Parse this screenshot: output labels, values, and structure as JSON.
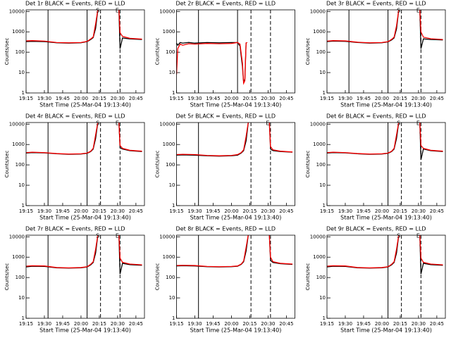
{
  "chart_data": [
    {
      "type": "line",
      "title": "Det 1r BLACK = Events, RED = LLD",
      "xlabel": "Start Time (25-Mar-04 19:13:40)",
      "ylabel": "Counts/sec",
      "ylog": true,
      "xlim": [
        "19:15",
        "20:52"
      ],
      "xticks": [
        "19:15",
        "19:30",
        "19:45",
        "20:00",
        "20:15",
        "20:30",
        "20:45"
      ],
      "ylim": [
        1,
        12000
      ],
      "yticks": [
        1,
        10,
        100,
        1000,
        10000
      ],
      "x": [
        "19:15",
        "19:20",
        "19:30",
        "19:40",
        "19:50",
        "20:00",
        "20:05",
        "20:08",
        "20:10",
        "20:12",
        "20:14",
        "20:31",
        "20:32",
        "20:34",
        "20:40",
        "20:50"
      ],
      "series": [
        {
          "color": "#000000",
          "values": [
            330,
            340,
            330,
            290,
            280,
            290,
            330,
            420,
            520,
            1500,
            15000,
            15000,
            150,
            500,
            450,
            420
          ]
        },
        {
          "color": "#ff0000",
          "values": [
            360,
            370,
            350,
            300,
            290,
            300,
            340,
            450,
            560,
            2500,
            15000,
            15000,
            900,
            600,
            480,
            440
          ]
        }
      ],
      "vlines": [
        {
          "x": "19:33",
          "style": "solid"
        },
        {
          "x": "20:05",
          "style": "solid"
        },
        {
          "x": "20:16",
          "style": "dashed",
          "label": "S"
        },
        {
          "x": "20:32",
          "style": "dashed",
          "label": "E"
        }
      ]
    },
    {
      "type": "line",
      "title": "Det 2r BLACK = Events, RED = LLD",
      "xlabel": "Start Time (25-Mar-04 19:13:40)",
      "ylabel": "Counts/sec",
      "ylog": true,
      "xlim": [
        "19:15",
        "20:52"
      ],
      "xticks": [
        "19:15",
        "19:30",
        "19:45",
        "20:00",
        "20:15",
        "20:30",
        "20:45"
      ],
      "ylim": [
        1,
        12000
      ],
      "yticks": [
        1,
        10,
        100,
        1000,
        10000
      ],
      "x": [
        "19:15",
        "19:16",
        "19:18",
        "19:20",
        "19:25",
        "19:30",
        "19:40",
        "19:50",
        "20:00",
        "20:05",
        "20:07",
        "20:09",
        "20:10",
        "20:11",
        "20:12",
        "20:13"
      ],
      "series": [
        {
          "color": "#000000",
          "values": [
            280,
            220,
            300,
            280,
            300,
            280,
            300,
            290,
            300,
            300,
            200,
            20,
            3,
            5,
            300,
            null
          ]
        },
        {
          "color": "#ff0000",
          "values": [
            8,
            150,
            250,
            220,
            260,
            250,
            270,
            260,
            270,
            300,
            250,
            30,
            3,
            4,
            280,
            300
          ]
        }
      ],
      "vlines": [
        {
          "x": "19:33",
          "style": "solid"
        },
        {
          "x": "20:05",
          "style": "solid"
        },
        {
          "x": "20:16",
          "style": "dashed"
        },
        {
          "x": "20:32",
          "style": "dashed"
        }
      ]
    },
    {
      "type": "line",
      "title": "Det 3r BLACK = Events, RED = LLD",
      "xlabel": "Start Time (25-Mar-04 19:13:40)",
      "ylabel": "Counts/sec",
      "ylog": true,
      "xlim": [
        "19:15",
        "20:52"
      ],
      "xticks": [
        "19:15",
        "19:30",
        "19:45",
        "20:00",
        "20:15",
        "20:30",
        "20:45"
      ],
      "ylim": [
        1,
        12000
      ],
      "yticks": [
        1,
        10,
        100,
        1000,
        10000
      ],
      "x": [
        "19:15",
        "19:20",
        "19:30",
        "19:40",
        "19:50",
        "20:00",
        "20:05",
        "20:08",
        "20:10",
        "20:12",
        "20:14",
        "20:31",
        "20:32",
        "20:34",
        "20:40",
        "20:50"
      ],
      "series": [
        {
          "color": "#000000",
          "values": [
            330,
            350,
            340,
            300,
            280,
            290,
            320,
            400,
            500,
            1400,
            15000,
            15000,
            150,
            450,
            420,
            400
          ]
        },
        {
          "color": "#ff0000",
          "values": [
            350,
            370,
            360,
            310,
            290,
            300,
            330,
            430,
            550,
            2000,
            15000,
            15000,
            1000,
            550,
            460,
            420
          ]
        }
      ],
      "vlines": [
        {
          "x": "19:33",
          "style": "solid"
        },
        {
          "x": "20:05",
          "style": "solid"
        },
        {
          "x": "20:16",
          "style": "dashed",
          "label": "S"
        },
        {
          "x": "20:32",
          "style": "dashed",
          "label": "E"
        }
      ]
    },
    {
      "type": "line",
      "title": "Det 4r BLACK = Events, RED = LLD",
      "xlabel": "Start Time (25-Mar-04 19:13:40)",
      "ylabel": "Counts/sec",
      "ylog": true,
      "xlim": [
        "19:15",
        "20:52"
      ],
      "xticks": [
        "19:15",
        "19:30",
        "19:45",
        "20:00",
        "20:15",
        "20:30",
        "20:45"
      ],
      "ylim": [
        1,
        12000
      ],
      "yticks": [
        1,
        10,
        100,
        1000,
        10000
      ],
      "x": [
        "19:15",
        "19:20",
        "19:30",
        "19:40",
        "19:50",
        "20:00",
        "20:05",
        "20:08",
        "20:10",
        "20:12",
        "20:14",
        "20:31",
        "20:32",
        "20:34",
        "20:40",
        "20:50"
      ],
      "series": [
        {
          "color": "#000000",
          "values": [
            380,
            400,
            390,
            350,
            330,
            340,
            370,
            450,
            600,
            2000,
            15000,
            15000,
            700,
            600,
            500,
            450
          ]
        },
        {
          "color": "#ff0000",
          "values": [
            400,
            420,
            400,
            360,
            340,
            350,
            380,
            470,
            650,
            3000,
            15000,
            15000,
            900,
            650,
            520,
            470
          ]
        }
      ],
      "vlines": [
        {
          "x": "19:33",
          "style": "solid"
        },
        {
          "x": "20:05",
          "style": "solid"
        },
        {
          "x": "20:16",
          "style": "dashed",
          "label": "S"
        },
        {
          "x": "20:32",
          "style": "dashed",
          "label": "E"
        }
      ]
    },
    {
      "type": "line",
      "title": "Det 5r BLACK = Events, RED = LLD",
      "xlabel": "Start Time (25-Mar-04 19:13:40)",
      "ylabel": "Counts/sec",
      "ylog": true,
      "xlim": [
        "19:15",
        "20:52"
      ],
      "xticks": [
        "19:15",
        "19:30",
        "19:45",
        "20:00",
        "20:15",
        "20:30",
        "20:45"
      ],
      "ylim": [
        1,
        12000
      ],
      "yticks": [
        1,
        10,
        100,
        1000,
        10000
      ],
      "x": [
        "19:15",
        "19:20",
        "19:30",
        "19:40",
        "19:50",
        "20:00",
        "20:05",
        "20:08",
        "20:10",
        "20:12",
        "20:14",
        "20:31",
        "20:32",
        "20:34",
        "20:40",
        "20:50"
      ],
      "series": [
        {
          "color": "#000000",
          "values": [
            300,
            310,
            300,
            280,
            270,
            280,
            300,
            380,
            500,
            1500,
            15000,
            15000,
            600,
            500,
            450,
            420
          ]
        },
        {
          "color": "#ff0000",
          "values": [
            320,
            330,
            320,
            290,
            280,
            290,
            320,
            400,
            550,
            2500,
            15000,
            15000,
            800,
            550,
            470,
            430
          ]
        }
      ],
      "vlines": [
        {
          "x": "19:33",
          "style": "solid"
        },
        {
          "x": "20:16",
          "style": "dashed"
        },
        {
          "x": "20:32",
          "style": "dashed",
          "label": "E"
        }
      ]
    },
    {
      "type": "line",
      "title": "Det 6r BLACK = Events, RED = LLD",
      "xlabel": "Start Time (25-Mar-04 19:13:40)",
      "ylabel": "Counts/sec",
      "ylog": true,
      "xlim": [
        "19:15",
        "20:52"
      ],
      "xticks": [
        "19:15",
        "19:30",
        "19:45",
        "20:00",
        "20:15",
        "20:30",
        "20:45"
      ],
      "ylim": [
        1,
        12000
      ],
      "yticks": [
        1,
        10,
        100,
        1000,
        10000
      ],
      "x": [
        "19:15",
        "19:20",
        "19:30",
        "19:40",
        "19:50",
        "20:00",
        "20:05",
        "20:08",
        "20:10",
        "20:12",
        "20:14",
        "20:31",
        "20:32",
        "20:34",
        "20:40",
        "20:50"
      ],
      "series": [
        {
          "color": "#000000",
          "values": [
            380,
            400,
            390,
            350,
            330,
            340,
            370,
            450,
            600,
            2000,
            15000,
            15000,
            180,
            600,
            500,
            450
          ]
        },
        {
          "color": "#ff0000",
          "values": [
            400,
            420,
            400,
            360,
            340,
            350,
            380,
            470,
            650,
            3000,
            15000,
            15000,
            900,
            650,
            520,
            470
          ]
        }
      ],
      "vlines": [
        {
          "x": "20:05",
          "style": "solid"
        },
        {
          "x": "20:16",
          "style": "dashed",
          "label": "S"
        },
        {
          "x": "20:32",
          "style": "dashed",
          "label": "E"
        }
      ]
    },
    {
      "type": "line",
      "title": "Det 7r BLACK = Events, RED = LLD",
      "xlabel": "Start Time (25-Mar-04 19:13:40)",
      "ylabel": "Counts/sec",
      "ylog": true,
      "xlim": [
        "19:15",
        "20:52"
      ],
      "xticks": [
        "19:15",
        "19:30",
        "19:45",
        "20:00",
        "20:15",
        "20:30",
        "20:45"
      ],
      "ylim": [
        1,
        12000
      ],
      "yticks": [
        1,
        10,
        100,
        1000,
        10000
      ],
      "x": [
        "19:15",
        "19:20",
        "19:30",
        "19:40",
        "19:50",
        "20:00",
        "20:05",
        "20:08",
        "20:10",
        "20:12",
        "20:14",
        "20:31",
        "20:32",
        "20:34",
        "20:40",
        "20:50"
      ],
      "series": [
        {
          "color": "#000000",
          "values": [
            330,
            360,
            350,
            300,
            290,
            300,
            330,
            420,
            550,
            1600,
            15000,
            15000,
            150,
            500,
            430,
            400
          ]
        },
        {
          "color": "#ff0000",
          "values": [
            360,
            380,
            370,
            310,
            300,
            310,
            340,
            450,
            600,
            2500,
            15000,
            15000,
            900,
            560,
            460,
            420
          ]
        }
      ],
      "vlines": [
        {
          "x": "19:33",
          "style": "solid"
        },
        {
          "x": "20:05",
          "style": "solid"
        },
        {
          "x": "20:16",
          "style": "dashed",
          "label": "S"
        },
        {
          "x": "20:32",
          "style": "dashed",
          "label": "E"
        }
      ]
    },
    {
      "type": "line",
      "title": "Det 8r BLACK = Events, RED = LLD",
      "xlabel": "Start Time (25-Mar-04 19:13:40)",
      "ylabel": "Counts/sec",
      "ylog": true,
      "xlim": [
        "19:15",
        "20:52"
      ],
      "xticks": [
        "19:15",
        "19:30",
        "19:45",
        "20:00",
        "20:15",
        "20:30",
        "20:45"
      ],
      "ylim": [
        1,
        12000
      ],
      "yticks": [
        1,
        10,
        100,
        1000,
        10000
      ],
      "x": [
        "19:15",
        "19:20",
        "19:30",
        "19:40",
        "19:50",
        "20:00",
        "20:05",
        "20:08",
        "20:10",
        "20:12",
        "20:14",
        "20:31",
        "20:32",
        "20:34",
        "20:40",
        "20:50"
      ],
      "series": [
        {
          "color": "#000000",
          "values": [
            370,
            380,
            370,
            340,
            330,
            340,
            360,
            440,
            600,
            2000,
            15000,
            15000,
            700,
            550,
            480,
            440
          ]
        },
        {
          "color": "#ff0000",
          "values": [
            390,
            400,
            390,
            350,
            340,
            350,
            370,
            460,
            650,
            3000,
            15000,
            15000,
            1000,
            600,
            500,
            460
          ]
        }
      ],
      "vlines": [
        {
          "x": "19:33",
          "style": "solid"
        },
        {
          "x": "20:16",
          "style": "dashed"
        },
        {
          "x": "20:32",
          "style": "dashed"
        }
      ]
    },
    {
      "type": "line",
      "title": "Det 9r BLACK = Events, RED = LLD",
      "xlabel": "Start Time (25-Mar-04 19:13:40)",
      "ylabel": "Counts/sec",
      "ylog": true,
      "xlim": [
        "19:15",
        "20:52"
      ],
      "xticks": [
        "19:15",
        "19:30",
        "19:45",
        "20:00",
        "20:15",
        "20:30",
        "20:45"
      ],
      "ylim": [
        1,
        12000
      ],
      "yticks": [
        1,
        10,
        100,
        1000,
        10000
      ],
      "x": [
        "19:15",
        "19:20",
        "19:30",
        "19:40",
        "19:50",
        "20:00",
        "20:05",
        "20:08",
        "20:10",
        "20:12",
        "20:14",
        "20:31",
        "20:32",
        "20:34",
        "20:40",
        "20:50"
      ],
      "series": [
        {
          "color": "#000000",
          "values": [
            330,
            360,
            350,
            300,
            290,
            300,
            330,
            420,
            550,
            1600,
            15000,
            15000,
            150,
            500,
            430,
            400
          ]
        },
        {
          "color": "#ff0000",
          "values": [
            360,
            380,
            370,
            310,
            300,
            310,
            340,
            450,
            600,
            2500,
            15000,
            15000,
            900,
            560,
            460,
            420
          ]
        }
      ],
      "vlines": [
        {
          "x": "20:05",
          "style": "solid"
        },
        {
          "x": "20:16",
          "style": "dashed",
          "label": "S"
        },
        {
          "x": "20:32",
          "style": "dashed",
          "label": "E"
        }
      ]
    }
  ]
}
